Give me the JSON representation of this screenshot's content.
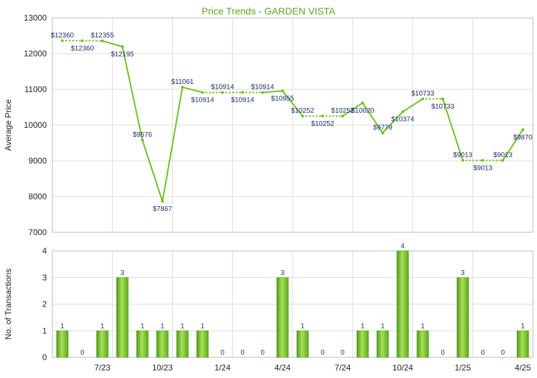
{
  "chart_data": [
    {
      "type": "line",
      "title": "Price Trends - GARDEN VISTA",
      "ylabel": "Average Price",
      "ylim": [
        7000,
        13000
      ],
      "yticks": [
        7000,
        8000,
        9000,
        10000,
        11000,
        12000,
        13000
      ],
      "xticks": [
        "7/23",
        "10/23",
        "1/24",
        "4/24",
        "7/24",
        "10/24",
        "1/25",
        "4/25"
      ],
      "series_color": "#6cc11f",
      "grid": true,
      "points": [
        {
          "month": 0,
          "value": 12360,
          "label": "$12360",
          "dotted_next": true
        },
        {
          "month": 1,
          "value": 12360,
          "label": "$12360",
          "dotted_next": true
        },
        {
          "month": 2,
          "value": 12355,
          "label": "$12355",
          "dotted_next": false
        },
        {
          "month": 3,
          "value": 12195,
          "label": "$12195",
          "dotted_next": false
        },
        {
          "month": 4,
          "value": 9576,
          "label": "$9576",
          "dotted_next": false
        },
        {
          "month": 5,
          "value": 7867,
          "label": "$7867",
          "dotted_next": false
        },
        {
          "month": 6,
          "value": 11061,
          "label": "$11061",
          "dotted_next": false
        },
        {
          "month": 7,
          "value": 10914,
          "label": "$10914",
          "dotted_next": true
        },
        {
          "month": 8,
          "value": 10914,
          "label": "$10914",
          "dotted_next": true
        },
        {
          "month": 9,
          "value": 10914,
          "label": "$10914",
          "dotted_next": true
        },
        {
          "month": 10,
          "value": 10914,
          "label": "$10914",
          "dotted_next": false
        },
        {
          "month": 11,
          "value": 10955,
          "label": "$10955",
          "dotted_next": false
        },
        {
          "month": 12,
          "value": 10252,
          "label": "$10252",
          "dotted_next": true
        },
        {
          "month": 13,
          "value": 10252,
          "label": "$10252",
          "dotted_next": true
        },
        {
          "month": 14,
          "value": 10252,
          "label": "$10252",
          "dotted_next": false
        },
        {
          "month": 15,
          "value": 10620,
          "label": "$10620",
          "dotted_next": false
        },
        {
          "month": 16,
          "value": 9779,
          "label": "$9779",
          "dotted_next": false
        },
        {
          "month": 17,
          "value": 10374,
          "label": "$10374",
          "dotted_next": false
        },
        {
          "month": 18,
          "value": 10733,
          "label": "$10733",
          "dotted_next": true
        },
        {
          "month": 19,
          "value": 10733,
          "label": "$10733",
          "dotted_next": false
        },
        {
          "month": 20,
          "value": 9013,
          "label": "$9013",
          "dotted_next": true
        },
        {
          "month": 21,
          "value": 9013,
          "label": "$9013",
          "dotted_next": true
        },
        {
          "month": 22,
          "value": 9013,
          "label": "$9013",
          "dotted_next": false
        },
        {
          "month": 23,
          "value": 9870,
          "label": "$9870",
          "dotted_next": false
        }
      ]
    },
    {
      "type": "bar",
      "ylabel": "No. of Transactions",
      "ylim": [
        0,
        4
      ],
      "yticks": [
        0,
        1,
        2,
        3,
        4
      ],
      "xticks": [
        "7/23",
        "10/23",
        "1/24",
        "4/24",
        "7/24",
        "10/24",
        "1/25",
        "4/25"
      ],
      "bar_color": "#6cc11f",
      "grid": true,
      "values": [
        1,
        0,
        1,
        3,
        1,
        1,
        1,
        1,
        0,
        0,
        0,
        3,
        1,
        0,
        0,
        1,
        1,
        4,
        1,
        0,
        3,
        0,
        0,
        1
      ]
    }
  ]
}
